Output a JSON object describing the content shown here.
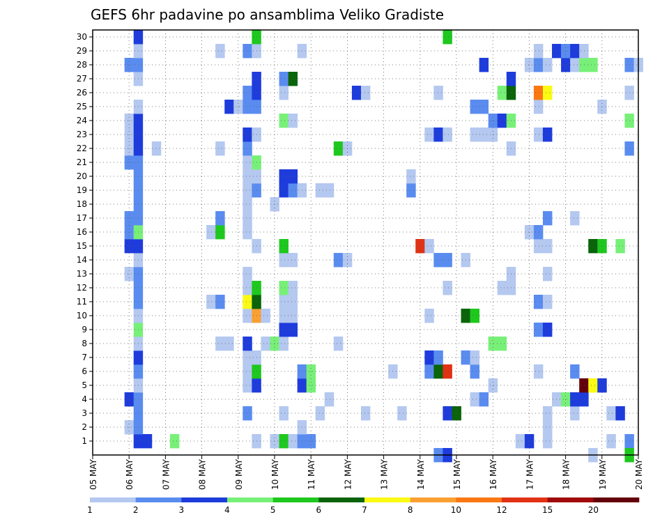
{
  "chart_data": {
    "type": "heatmap",
    "title": "GEFS 6hr padavine po ansamblima Veliko Gradiste",
    "x_tick_labels": [
      "05 MAY",
      "06 MAY",
      "07 MAY",
      "08 MAY",
      "09 MAY",
      "10 MAY",
      "11 MAY",
      "12 MAY",
      "13 MAY",
      "14 MAY",
      "15 MAY",
      "16 MAY",
      "17 MAY",
      "18 MAY",
      "19 MAY",
      "20 MAY"
    ],
    "y_tick_labels": [
      "1",
      "2",
      "3",
      "4",
      "5",
      "6",
      "7",
      "8",
      "9",
      "10",
      "11",
      "12",
      "13",
      "14",
      "15",
      "16",
      "17",
      "18",
      "19",
      "20",
      "21",
      "22",
      "23",
      "24",
      "25",
      "26",
      "27",
      "28",
      "29",
      "30"
    ],
    "x_range_days": [
      0,
      15
    ],
    "y_range": [
      0,
      30
    ],
    "grid": "dotted",
    "legend": {
      "position": "bottom",
      "levels": [
        "1",
        "2",
        "3",
        "4",
        "5",
        "6",
        "7",
        "8",
        "10",
        "12",
        "15",
        "20"
      ],
      "colors": [
        "#b4c8f0",
        "#5a8cf0",
        "#1e3cdc",
        "#78f078",
        "#1ec81e",
        "#0a640a",
        "#fafa14",
        "#faa032",
        "#fa7814",
        "#e13214",
        "#a00a0a",
        "#64000a"
      ]
    },
    "cells": [
      [
        1.25,
        1,
        2
      ],
      [
        1.5,
        1,
        2
      ],
      [
        2.25,
        1,
        3
      ],
      [
        4.5,
        1,
        0
      ],
      [
        5.0,
        1,
        0
      ],
      [
        5.25,
        1,
        4
      ],
      [
        5.5,
        1,
        0
      ],
      [
        5.75,
        1,
        1
      ],
      [
        6.0,
        1,
        1
      ],
      [
        11.75,
        1,
        0
      ],
      [
        12.0,
        1,
        2
      ],
      [
        12.5,
        1,
        0
      ],
      [
        14.25,
        1,
        0
      ],
      [
        14.75,
        1,
        1
      ],
      [
        1.0,
        2,
        0
      ],
      [
        1.25,
        2,
        1
      ],
      [
        5.75,
        2,
        0
      ],
      [
        12.5,
        2,
        0
      ],
      [
        1.25,
        3,
        1
      ],
      [
        4.25,
        3,
        1
      ],
      [
        5.25,
        3,
        0
      ],
      [
        6.25,
        3,
        0
      ],
      [
        7.5,
        3,
        0
      ],
      [
        8.5,
        3,
        0
      ],
      [
        9.75,
        3,
        2
      ],
      [
        10.0,
        3,
        5
      ],
      [
        12.5,
        3,
        0
      ],
      [
        13.25,
        3,
        0
      ],
      [
        14.25,
        3,
        0
      ],
      [
        14.5,
        3,
        2
      ],
      [
        1.0,
        4,
        2
      ],
      [
        1.25,
        4,
        1
      ],
      [
        6.5,
        4,
        0
      ],
      [
        10.5,
        4,
        0
      ],
      [
        10.75,
        4,
        1
      ],
      [
        12.75,
        4,
        0
      ],
      [
        13.0,
        4,
        3
      ],
      [
        13.25,
        4,
        2
      ],
      [
        13.5,
        4,
        2
      ],
      [
        1.25,
        5,
        0
      ],
      [
        4.25,
        5,
        0
      ],
      [
        4.5,
        5,
        2
      ],
      [
        5.75,
        5,
        2
      ],
      [
        6.0,
        5,
        3
      ],
      [
        11.0,
        5,
        0
      ],
      [
        13.5,
        5,
        11
      ],
      [
        13.75,
        5,
        6
      ],
      [
        14.0,
        5,
        2
      ],
      [
        1.25,
        6,
        1
      ],
      [
        4.25,
        6,
        0
      ],
      [
        4.5,
        6,
        4
      ],
      [
        5.75,
        6,
        1
      ],
      [
        6.0,
        6,
        3
      ],
      [
        8.25,
        6,
        0
      ],
      [
        9.25,
        6,
        1
      ],
      [
        9.5,
        6,
        5
      ],
      [
        9.75,
        6,
        9
      ],
      [
        10.5,
        6,
        1
      ],
      [
        12.25,
        6,
        0
      ],
      [
        13.25,
        6,
        1
      ],
      [
        1.25,
        7,
        2
      ],
      [
        4.25,
        7,
        0
      ],
      [
        4.5,
        7,
        0
      ],
      [
        9.25,
        7,
        2
      ],
      [
        9.5,
        7,
        1
      ],
      [
        10.25,
        7,
        1
      ],
      [
        10.5,
        7,
        0
      ],
      [
        1.25,
        8,
        0
      ],
      [
        3.5,
        8,
        0
      ],
      [
        3.75,
        8,
        0
      ],
      [
        4.25,
        8,
        2
      ],
      [
        4.75,
        8,
        0
      ],
      [
        5.0,
        8,
        3
      ],
      [
        5.25,
        8,
        0
      ],
      [
        6.75,
        8,
        0
      ],
      [
        11.0,
        8,
        3
      ],
      [
        11.25,
        8,
        3
      ],
      [
        1.25,
        9,
        3
      ],
      [
        5.25,
        9,
        2
      ],
      [
        5.5,
        9,
        2
      ],
      [
        12.25,
        9,
        1
      ],
      [
        12.5,
        9,
        2
      ],
      [
        1.25,
        10,
        0
      ],
      [
        4.25,
        10,
        0
      ],
      [
        4.5,
        10,
        7
      ],
      [
        4.75,
        10,
        0
      ],
      [
        5.25,
        10,
        0
      ],
      [
        5.5,
        10,
        0
      ],
      [
        9.25,
        10,
        0
      ],
      [
        10.25,
        10,
        5
      ],
      [
        10.5,
        10,
        4
      ],
      [
        1.25,
        11,
        1
      ],
      [
        3.25,
        11,
        0
      ],
      [
        3.5,
        11,
        1
      ],
      [
        4.25,
        11,
        6
      ],
      [
        4.5,
        11,
        5
      ],
      [
        5.25,
        11,
        0
      ],
      [
        5.5,
        11,
        0
      ],
      [
        12.25,
        11,
        1
      ],
      [
        12.5,
        11,
        0
      ],
      [
        1.25,
        12,
        1
      ],
      [
        4.25,
        12,
        0
      ],
      [
        4.5,
        12,
        4
      ],
      [
        5.25,
        12,
        3
      ],
      [
        5.5,
        12,
        0
      ],
      [
        9.75,
        12,
        0
      ],
      [
        11.25,
        12,
        0
      ],
      [
        11.5,
        12,
        0
      ],
      [
        1.0,
        13,
        0
      ],
      [
        1.25,
        13,
        1
      ],
      [
        4.25,
        13,
        0
      ],
      [
        11.5,
        13,
        0
      ],
      [
        12.5,
        13,
        0
      ],
      [
        1.25,
        14,
        0
      ],
      [
        5.25,
        14,
        0
      ],
      [
        5.5,
        14,
        0
      ],
      [
        6.75,
        14,
        1
      ],
      [
        7.0,
        14,
        0
      ],
      [
        9.5,
        14,
        1
      ],
      [
        9.75,
        14,
        1
      ],
      [
        10.25,
        14,
        0
      ],
      [
        1.0,
        15,
        2
      ],
      [
        1.25,
        15,
        2
      ],
      [
        4.5,
        15,
        0
      ],
      [
        5.25,
        15,
        4
      ],
      [
        9.0,
        15,
        9
      ],
      [
        9.25,
        15,
        0
      ],
      [
        12.25,
        15,
        0
      ],
      [
        12.5,
        15,
        0
      ],
      [
        13.75,
        15,
        5
      ],
      [
        14.0,
        15,
        4
      ],
      [
        14.5,
        15,
        3
      ],
      [
        1.0,
        16,
        1
      ],
      [
        1.25,
        16,
        3
      ],
      [
        3.25,
        16,
        0
      ],
      [
        3.5,
        16,
        4
      ],
      [
        4.25,
        16,
        0
      ],
      [
        12.0,
        16,
        0
      ],
      [
        12.25,
        16,
        1
      ],
      [
        1.0,
        17,
        1
      ],
      [
        1.25,
        17,
        1
      ],
      [
        3.5,
        17,
        1
      ],
      [
        4.25,
        17,
        0
      ],
      [
        12.5,
        17,
        1
      ],
      [
        13.25,
        17,
        0
      ],
      [
        1.25,
        18,
        1
      ],
      [
        4.25,
        18,
        0
      ],
      [
        5.0,
        18,
        0
      ],
      [
        1.25,
        19,
        1
      ],
      [
        4.25,
        19,
        0
      ],
      [
        4.5,
        19,
        1
      ],
      [
        5.25,
        19,
        2
      ],
      [
        5.5,
        19,
        1
      ],
      [
        5.75,
        19,
        0
      ],
      [
        6.25,
        19,
        0
      ],
      [
        6.5,
        19,
        0
      ],
      [
        8.75,
        19,
        1
      ],
      [
        1.25,
        20,
        1
      ],
      [
        4.25,
        20,
        0
      ],
      [
        4.5,
        20,
        0
      ],
      [
        5.25,
        20,
        2
      ],
      [
        5.5,
        20,
        2
      ],
      [
        8.75,
        20,
        0
      ],
      [
        1.0,
        21,
        1
      ],
      [
        1.25,
        21,
        1
      ],
      [
        4.25,
        21,
        0
      ],
      [
        4.5,
        21,
        3
      ],
      [
        1.0,
        22,
        0
      ],
      [
        1.25,
        22,
        2
      ],
      [
        1.75,
        22,
        0
      ],
      [
        3.5,
        22,
        0
      ],
      [
        4.25,
        22,
        1
      ],
      [
        6.75,
        22,
        4
      ],
      [
        7.0,
        22,
        0
      ],
      [
        11.5,
        22,
        0
      ],
      [
        14.75,
        22,
        1
      ],
      [
        1.0,
        23,
        0
      ],
      [
        1.25,
        23,
        2
      ],
      [
        4.25,
        23,
        2
      ],
      [
        4.5,
        23,
        0
      ],
      [
        9.25,
        23,
        0
      ],
      [
        9.5,
        23,
        2
      ],
      [
        9.75,
        23,
        0
      ],
      [
        10.5,
        23,
        0
      ],
      [
        10.75,
        23,
        0
      ],
      [
        11.0,
        23,
        0
      ],
      [
        12.25,
        23,
        0
      ],
      [
        12.5,
        23,
        2
      ],
      [
        1.0,
        24,
        0
      ],
      [
        1.25,
        24,
        2
      ],
      [
        5.25,
        24,
        3
      ],
      [
        5.5,
        24,
        0
      ],
      [
        11.0,
        24,
        1
      ],
      [
        11.25,
        24,
        2
      ],
      [
        11.5,
        24,
        3
      ],
      [
        14.75,
        24,
        3
      ],
      [
        1.25,
        25,
        0
      ],
      [
        3.75,
        25,
        2
      ],
      [
        4.0,
        25,
        0
      ],
      [
        4.25,
        25,
        1
      ],
      [
        4.5,
        25,
        1
      ],
      [
        10.5,
        25,
        1
      ],
      [
        10.75,
        25,
        1
      ],
      [
        12.25,
        25,
        0
      ],
      [
        14.0,
        25,
        0
      ],
      [
        4.25,
        26,
        1
      ],
      [
        4.5,
        26,
        2
      ],
      [
        5.25,
        26,
        0
      ],
      [
        7.25,
        26,
        2
      ],
      [
        7.5,
        26,
        0
      ],
      [
        9.5,
        26,
        0
      ],
      [
        11.25,
        26,
        3
      ],
      [
        11.5,
        26,
        5
      ],
      [
        12.25,
        26,
        8
      ],
      [
        12.5,
        26,
        6
      ],
      [
        14.75,
        26,
        0
      ],
      [
        1.25,
        27,
        0
      ],
      [
        4.5,
        27,
        2
      ],
      [
        5.25,
        27,
        1
      ],
      [
        5.5,
        27,
        5
      ],
      [
        11.5,
        27,
        2
      ],
      [
        1.0,
        28,
        1
      ],
      [
        1.25,
        28,
        1
      ],
      [
        10.75,
        28,
        2
      ],
      [
        12.0,
        28,
        0
      ],
      [
        12.25,
        28,
        1
      ],
      [
        12.5,
        28,
        0
      ],
      [
        13.0,
        28,
        2
      ],
      [
        13.25,
        28,
        0
      ],
      [
        13.5,
        28,
        3
      ],
      [
        13.75,
        28,
        3
      ],
      [
        14.75,
        28,
        1
      ],
      [
        15.0,
        28,
        0
      ],
      [
        1.25,
        29,
        0
      ],
      [
        3.5,
        29,
        0
      ],
      [
        4.25,
        29,
        1
      ],
      [
        4.5,
        29,
        0
      ],
      [
        5.75,
        29,
        0
      ],
      [
        12.25,
        29,
        0
      ],
      [
        12.75,
        29,
        2
      ],
      [
        13.0,
        29,
        1
      ],
      [
        13.25,
        29,
        2
      ],
      [
        13.5,
        29,
        0
      ],
      [
        1.25,
        30,
        2
      ],
      [
        4.5,
        30,
        4
      ],
      [
        9.75,
        30,
        4
      ],
      [
        9.5,
        0,
        1
      ],
      [
        9.75,
        0,
        2
      ],
      [
        13.75,
        0,
        0
      ],
      [
        14.75,
        0,
        4
      ]
    ]
  }
}
